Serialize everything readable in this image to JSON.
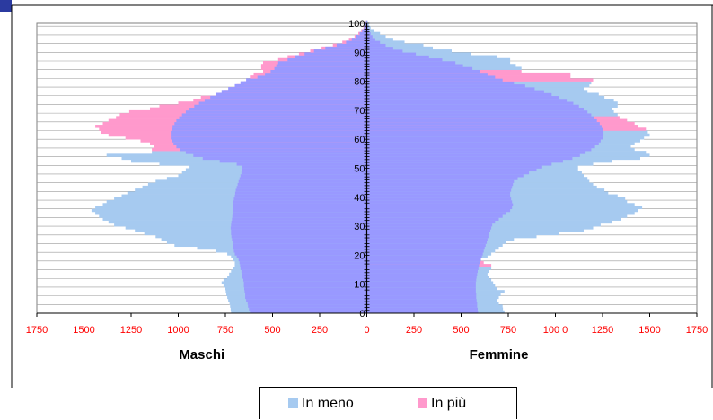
{
  "colors": {
    "base": "#9999ff",
    "meno": "#a6caf0",
    "piu": "#ff99cc",
    "tick": "#ff0000",
    "grid": "#9a9a9a"
  },
  "chart_data": {
    "type": "bar",
    "orientation": "horizontal",
    "title": "",
    "ylabel": "",
    "left_label": "Maschi",
    "right_label": "Femmine",
    "xlim": [
      -1750,
      1750
    ],
    "ylim": [
      0,
      100
    ],
    "x_ticks": [
      -1750,
      -1500,
      -1250,
      -1000,
      -750,
      -500,
      -250,
      0,
      250,
      500,
      750,
      1000,
      1250,
      1500,
      1750
    ],
    "x_tick_labels": [
      "1750",
      "1500",
      "1250",
      "1000",
      "750",
      "500",
      "250",
      "0",
      "250",
      "500",
      "750",
      "100 0",
      "1250",
      "1500",
      "1750"
    ],
    "y_ticks": [
      0,
      10,
      20,
      30,
      40,
      50,
      60,
      70,
      80,
      90,
      100
    ],
    "y_tick_labels": [
      "0",
      "10",
      "20",
      "30",
      "40",
      "50",
      "60",
      "70",
      "80",
      "90",
      "100"
    ],
    "grid": "horizontal",
    "age_step": 1,
    "series_note_order": [
      "common",
      "difference"
    ],
    "legend": [
      {
        "name": "In meno",
        "color": "#a6caf0"
      },
      {
        "name": "In più",
        "color": "#ff99cc"
      }
    ],
    "males_common": [
      620,
      625,
      630,
      632,
      640,
      645,
      645,
      648,
      650,
      652,
      652,
      655,
      660,
      662,
      665,
      670,
      672,
      675,
      680,
      690,
      700,
      705,
      708,
      710,
      712,
      715,
      718,
      720,
      720,
      722,
      720,
      718,
      715,
      713,
      712,
      712,
      710,
      710,
      710,
      705,
      700,
      698,
      695,
      690,
      685,
      680,
      675,
      670,
      665,
      660,
      660,
      690,
      780,
      870,
      920,
      960,
      990,
      1010,
      1025,
      1035,
      1040,
      1040,
      1040,
      1035,
      1030,
      1020,
      1010,
      995,
      980,
      960,
      940,
      915,
      890,
      860,
      830,
      800,
      770,
      735,
      700,
      670,
      640,
      580,
      540,
      510,
      490,
      480,
      470,
      420,
      380,
      330,
      280,
      220,
      160,
      110,
      80,
      55,
      38,
      25,
      15,
      8,
      4
    ],
    "males_total": [
      720,
      722,
      725,
      728,
      735,
      740,
      745,
      748,
      750,
      760,
      770,
      760,
      740,
      730,
      720,
      710,
      700,
      700,
      710,
      720,
      740,
      800,
      900,
      1020,
      1060,
      1090,
      1120,
      1180,
      1230,
      1280,
      1340,
      1370,
      1400,
      1420,
      1440,
      1460,
      1440,
      1400,
      1380,
      1340,
      1300,
      1270,
      1230,
      1190,
      1160,
      1120,
      1060,
      1000,
      980,
      960,
      940,
      1100,
      1250,
      1300,
      1380,
      1140,
      1140,
      1130,
      1150,
      1200,
      1280,
      1370,
      1410,
      1420,
      1440,
      1400,
      1370,
      1330,
      1310,
      1260,
      1150,
      1100,
      1000,
      920,
      880,
      800,
      760,
      730,
      690,
      650,
      620,
      620,
      600,
      550,
      560,
      560,
      550,
      470,
      420,
      360,
      300,
      240,
      180,
      130,
      95,
      65,
      45,
      30,
      18,
      10,
      5
    ],
    "males_total_type": [
      "meno",
      "meno",
      "meno",
      "meno",
      "meno",
      "meno",
      "meno",
      "meno",
      "meno",
      "meno",
      "meno",
      "meno",
      "meno",
      "meno",
      "meno",
      "meno",
      "meno",
      "meno",
      "meno",
      "meno",
      "meno",
      "meno",
      "meno",
      "meno",
      "meno",
      "meno",
      "meno",
      "meno",
      "meno",
      "meno",
      "meno",
      "meno",
      "meno",
      "meno",
      "meno",
      "meno",
      "meno",
      "meno",
      "meno",
      "meno",
      "meno",
      "meno",
      "meno",
      "meno",
      "meno",
      "meno",
      "meno",
      "meno",
      "meno",
      "meno",
      "meno",
      "meno",
      "meno",
      "meno",
      "meno",
      "meno",
      "piu",
      "piu",
      "piu",
      "piu",
      "piu",
      "piu",
      "piu",
      "piu",
      "piu",
      "piu",
      "piu",
      "piu",
      "piu",
      "piu",
      "piu",
      "piu",
      "piu",
      "piu",
      "piu",
      "piu",
      "piu",
      "piu",
      "piu",
      "piu",
      "piu",
      "piu",
      "piu",
      "piu",
      "piu",
      "piu",
      "piu",
      "piu",
      "piu",
      "piu",
      "piu",
      "piu",
      "piu",
      "piu",
      "piu",
      "piu",
      "piu",
      "piu",
      "piu",
      "piu",
      "piu"
    ],
    "females_common": [
      590,
      588,
      585,
      585,
      582,
      580,
      580,
      578,
      578,
      578,
      578,
      580,
      582,
      585,
      588,
      592,
      595,
      600,
      605,
      610,
      615,
      620,
      625,
      630,
      636,
      640,
      645,
      650,
      655,
      660,
      665,
      680,
      700,
      720,
      740,
      760,
      770,
      775,
      770,
      765,
      760,
      760,
      765,
      770,
      775,
      780,
      800,
      830,
      860,
      900,
      930,
      980,
      1040,
      1090,
      1130,
      1160,
      1190,
      1210,
      1230,
      1240,
      1250,
      1255,
      1255,
      1250,
      1245,
      1235,
      1220,
      1205,
      1190,
      1170,
      1150,
      1125,
      1095,
      1060,
      1020,
      980,
      940,
      890,
      840,
      780,
      720,
      680,
      640,
      600,
      560,
      510,
      470,
      400,
      330,
      260,
      190,
      140,
      100,
      70,
      45,
      30,
      20,
      12,
      7,
      4,
      2
    ],
    "females_total": [
      730,
      722,
      720,
      700,
      690,
      700,
      710,
      730,
      690,
      680,
      670,
      660,
      650,
      640,
      650,
      660,
      660,
      620,
      600,
      640,
      660,
      680,
      700,
      720,
      740,
      780,
      900,
      1020,
      1150,
      1200,
      1240,
      1300,
      1350,
      1380,
      1420,
      1440,
      1460,
      1420,
      1380,
      1370,
      1330,
      1280,
      1260,
      1220,
      1200,
      1180,
      1170,
      1150,
      1140,
      1120,
      1120,
      1200,
      1300,
      1450,
      1500,
      1480,
      1420,
      1400,
      1420,
      1450,
      1470,
      1500,
      1490,
      1480,
      1440,
      1420,
      1380,
      1340,
      1330,
      1310,
      1300,
      1330,
      1330,
      1310,
      1260,
      1230,
      1170,
      1150,
      1180,
      1190,
      1200,
      1080,
      1080,
      820,
      820,
      790,
      760,
      760,
      690,
      550,
      450,
      350,
      300,
      200,
      140,
      100,
      70,
      40,
      20,
      10,
      5
    ],
    "females_total_type": [
      "meno",
      "meno",
      "meno",
      "meno",
      "meno",
      "meno",
      "meno",
      "meno",
      "meno",
      "meno",
      "meno",
      "meno",
      "meno",
      "meno",
      "meno",
      "meno",
      "piu",
      "piu",
      "meno",
      "meno",
      "meno",
      "meno",
      "meno",
      "meno",
      "meno",
      "meno",
      "meno",
      "meno",
      "meno",
      "meno",
      "meno",
      "meno",
      "meno",
      "meno",
      "meno",
      "meno",
      "meno",
      "meno",
      "meno",
      "meno",
      "meno",
      "meno",
      "meno",
      "meno",
      "meno",
      "meno",
      "meno",
      "meno",
      "meno",
      "meno",
      "meno",
      "meno",
      "meno",
      "meno",
      "meno",
      "meno",
      "meno",
      "meno",
      "meno",
      "meno",
      "meno",
      "meno",
      "meno",
      "piu",
      "piu",
      "piu",
      "piu",
      "piu",
      "meno",
      "meno",
      "meno",
      "meno",
      "meno",
      "meno",
      "meno",
      "meno",
      "meno",
      "meno",
      "meno",
      "meno",
      "piu",
      "piu",
      "piu",
      "piu",
      "meno",
      "meno",
      "meno",
      "meno",
      "meno",
      "meno",
      "meno",
      "meno",
      "meno",
      "meno",
      "meno",
      "meno",
      "meno",
      "meno",
      "meno",
      "meno",
      "meno"
    ]
  }
}
